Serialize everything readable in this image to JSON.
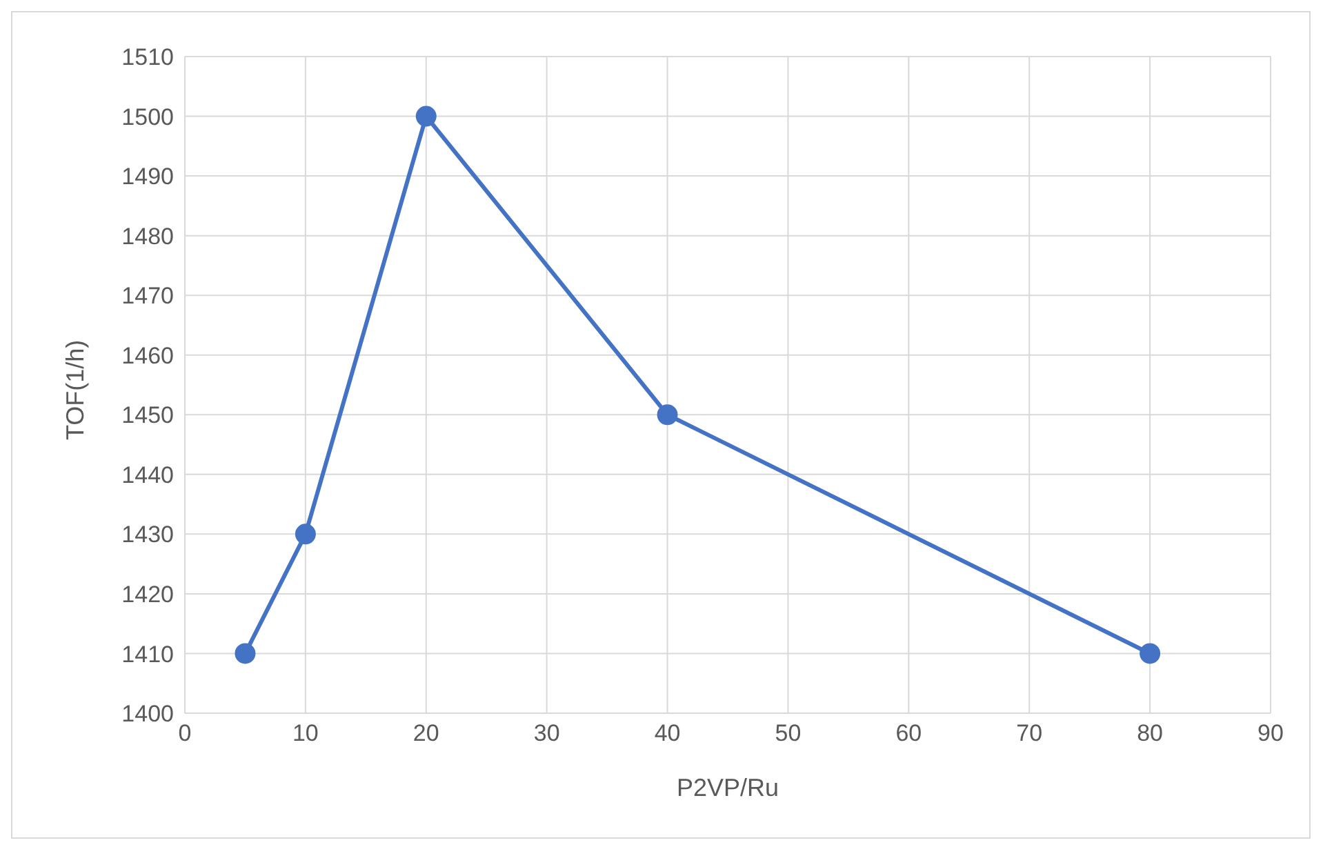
{
  "chart_data": {
    "type": "line",
    "xlabel": "P2VP/Ru",
    "ylabel": "TOF(1/h)",
    "x": [
      5,
      10,
      20,
      40,
      80
    ],
    "series": [
      {
        "color": "#4472c4",
        "values": [
          1410,
          1430,
          1500,
          1450,
          1410
        ]
      }
    ],
    "xlim": [
      0,
      90
    ],
    "xticks": [
      0,
      10,
      20,
      30,
      40,
      50,
      60,
      70,
      80,
      90
    ],
    "ylim": [
      1400,
      1510
    ],
    "yticks": [
      1400,
      1410,
      1420,
      1430,
      1440,
      1450,
      1460,
      1470,
      1480,
      1490,
      1500,
      1510
    ],
    "grid": true,
    "marker": "circle",
    "line_style": "solid"
  }
}
